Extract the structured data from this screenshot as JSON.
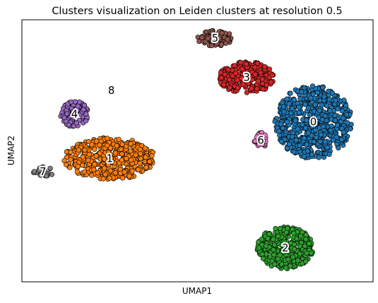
{
  "chart_data": {
    "type": "scatter",
    "title": "Clusters visualization on Leiden clusters at resolution 0.5",
    "xlabel": "UMAP1",
    "ylabel": "UMAP2",
    "xlim": [
      0,
      100
    ],
    "ylim": [
      0,
      100
    ],
    "show_ticks": false,
    "grid": false,
    "legend": "on data",
    "clusters": [
      {
        "label": "0",
        "color": "#1f77b4",
        "x": 83,
        "y": 61,
        "rx": 11,
        "ry": 14,
        "n": 620
      },
      {
        "label": "1",
        "color": "#ff7f0e",
        "x": 25,
        "y": 47,
        "rx": 13,
        "ry": 8,
        "n": 430
      },
      {
        "label": "2",
        "color": "#2ca02c",
        "x": 75,
        "y": 13,
        "rx": 8,
        "ry": 8,
        "n": 300
      },
      {
        "label": "3",
        "color": "#d62728",
        "x": 64,
        "y": 78,
        "rx": 8,
        "ry": 6,
        "n": 220
      },
      {
        "label": "4",
        "color": "#9467bd",
        "x": 15,
        "y": 64,
        "rx": 4,
        "ry": 5,
        "n": 90
      },
      {
        "label": "5",
        "color": "#8c564b",
        "x": 55,
        "y": 93,
        "rx": 5,
        "ry": 3,
        "n": 75
      },
      {
        "label": "6",
        "color": "#e377c2",
        "x": 68,
        "y": 54,
        "rx": 1.8,
        "ry": 3,
        "n": 32
      },
      {
        "label": "7",
        "color": "#7f7f7f",
        "x": 6,
        "y": 42,
        "rx": 3,
        "ry": 2,
        "n": 22
      },
      {
        "label": "8",
        "color": "#bcbd22",
        "x": 25.5,
        "y": 73,
        "rx": 0.4,
        "ry": 0.4,
        "n": 3
      }
    ]
  }
}
